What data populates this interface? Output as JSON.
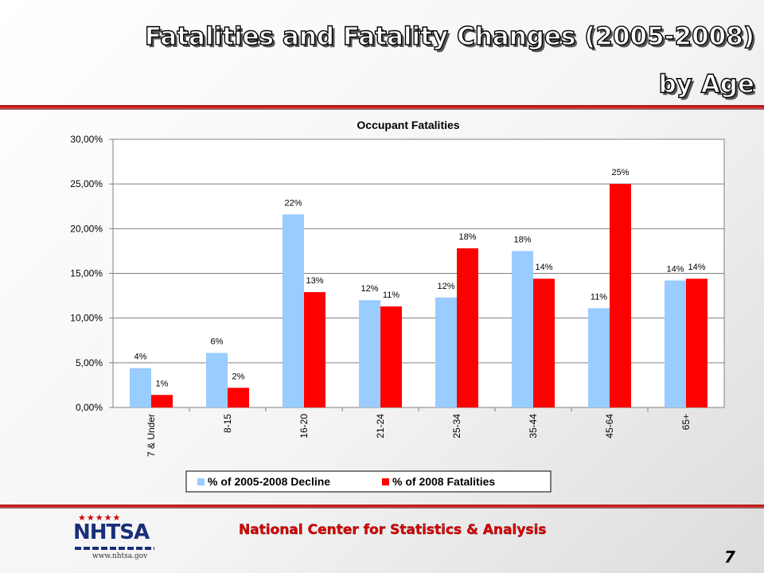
{
  "slide": {
    "title_line1": "Fatalities and Fatality Changes (2005-2008)",
    "title_line2": "by Age",
    "footer": "National Center for Statistics & Analysis",
    "page_number": "7",
    "logo": {
      "stars": "★★★★★",
      "word": "NHTSA",
      "url": "www.nhtsa.gov"
    }
  },
  "chart_data": {
    "type": "bar",
    "title": "Occupant Fatalities",
    "xlabel": "",
    "ylabel": "",
    "categories": [
      "7 & Under",
      "8-15",
      "16-20",
      "21-24",
      "25-34",
      "35-44",
      "45-64",
      "65+"
    ],
    "ylim": [
      0,
      30
    ],
    "yticks": [
      "0,00%",
      "5,00%",
      "10,00%",
      "15,00%",
      "20,00%",
      "25,00%",
      "30,00%"
    ],
    "grid": true,
    "legend_position": "bottom",
    "series": [
      {
        "name": "% of 2005-2008 Decline",
        "color": "#99ccff",
        "values": [
          4.4,
          6.1,
          21.6,
          12.0,
          12.3,
          17.5,
          11.1,
          14.2
        ],
        "labels": [
          "4%",
          "6%",
          "22%",
          "12%",
          "12%",
          "18%",
          "11%",
          "14%"
        ]
      },
      {
        "name": "% of 2008 Fatalities",
        "color": "#ff0000",
        "values": [
          1.4,
          2.2,
          12.9,
          11.3,
          17.8,
          14.4,
          25.0,
          14.4
        ],
        "labels": [
          "1%",
          "2%",
          "13%",
          "11%",
          "18%",
          "14%",
          "25%",
          "14%"
        ]
      }
    ]
  }
}
